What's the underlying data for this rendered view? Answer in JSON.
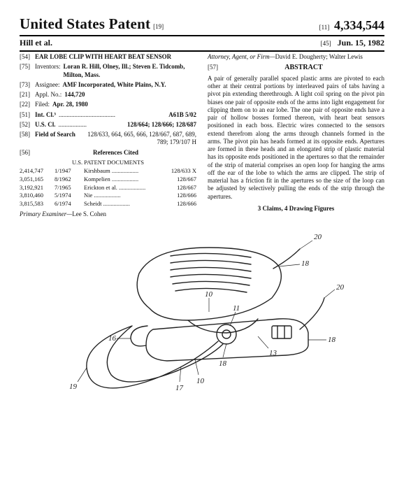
{
  "header": {
    "main_title": "United States Patent",
    "doc_code": "[19]",
    "code_11": "[11]",
    "code_45": "[45]",
    "patent_number": "4,334,544",
    "inventor_line": "Hill et al.",
    "issue_date": "Jun. 15, 1982"
  },
  "left": {
    "f54_num": "[54]",
    "f54_val": "EAR LOBE CLIP WITH HEART BEAT SENSOR",
    "f75_num": "[75]",
    "f75_lbl": "Inventors:",
    "f75_val": "Loran R. Hill, Olney, Ill.; Steven E. Tidcomb, Milton, Mass.",
    "f73_num": "[73]",
    "f73_lbl": "Assignee:",
    "f73_val": "AMF Incorporated, White Plains, N.Y.",
    "f21_num": "[21]",
    "f21_lbl": "Appl. No.:",
    "f21_val": "144,720",
    "f22_num": "[22]",
    "f22_lbl": "Filed:",
    "f22_val": "Apr. 28, 1980",
    "f51_num": "[51]",
    "f51_lbl": "Int. Cl.³",
    "f51_val": "A61B 5/02",
    "f52_num": "[52]",
    "f52_lbl": "U.S. Cl.",
    "f52_val": "128/664; 128/666; 128/687",
    "f58_num": "[58]",
    "f58_lbl": "Field of Search",
    "f58_val": "128/633, 664, 665, 666, 128/667, 687, 689, 789; 179/107 H",
    "f56_num": "[56]",
    "f56_lbl": "References Cited",
    "refs_sub": "U.S. PATENT DOCUMENTS",
    "patents": [
      {
        "no": "2,414,747",
        "date": "1/1947",
        "name": "Kirshbaum",
        "cls": "128/633 X"
      },
      {
        "no": "3,051,165",
        "date": "8/1962",
        "name": "Kompelien",
        "cls": "128/667"
      },
      {
        "no": "3,192,921",
        "date": "7/1965",
        "name": "Erickton et al.",
        "cls": "128/667"
      },
      {
        "no": "3,810,460",
        "date": "5/1974",
        "name": "Nie",
        "cls": "128/666"
      },
      {
        "no": "3,815,583",
        "date": "6/1974",
        "name": "Scheidt",
        "cls": "128/666"
      }
    ],
    "examiner_lbl": "Primary Examiner—",
    "examiner_val": "Lee S. Cohen"
  },
  "right": {
    "attorney_lbl": "Attorney, Agent, or Firm—",
    "attorney_val": "David E. Dougherty; Walter Lewis",
    "abs_num": "[57]",
    "abs_title": "ABSTRACT",
    "abs_body": "A pair of generally parallel spaced plastic arms are pivoted to each other at their central portions by interleaved pairs of tabs having a pivot pin extending therethrough. A light coil spring on the pivot pin biases one pair of opposite ends of the arms into light engagement for clipping them on to an ear lobe. The one pair of opposite ends have a pair of hollow bosses formed thereon, with heart beat sensors positioned in each boss. Electric wires connected to the sensors extend therefrom along the arms through channels formed in the arms. The pivot pin has heads formed at its opposite ends. Apertures are formed in these heads and an elongated strip of plastic material has its opposite ends positioned in the apertures so that the remainder of the strip of material comprises an open loop for hanging the arms off the ear of the lobe to which the arms are clipped. The strip of material has a friction fit in the apertures so the size of the loop can be adjusted by selectively pulling the ends of the strip through the apertures.",
    "claims": "3 Claims, 4 Drawing Figures"
  },
  "figure": {
    "labels": {
      "l10a": "10",
      "l10b": "10",
      "l10c": "10",
      "l11": "11",
      "l13": "13",
      "l16": "16",
      "l17": "17",
      "l18a": "18",
      "l18b": "18",
      "l18c": "18",
      "l19": "19",
      "l20a": "20",
      "l20b": "20"
    },
    "stroke_color": "#222",
    "stroke_width_main": 1.4,
    "stroke_width_leader": 0.7
  }
}
